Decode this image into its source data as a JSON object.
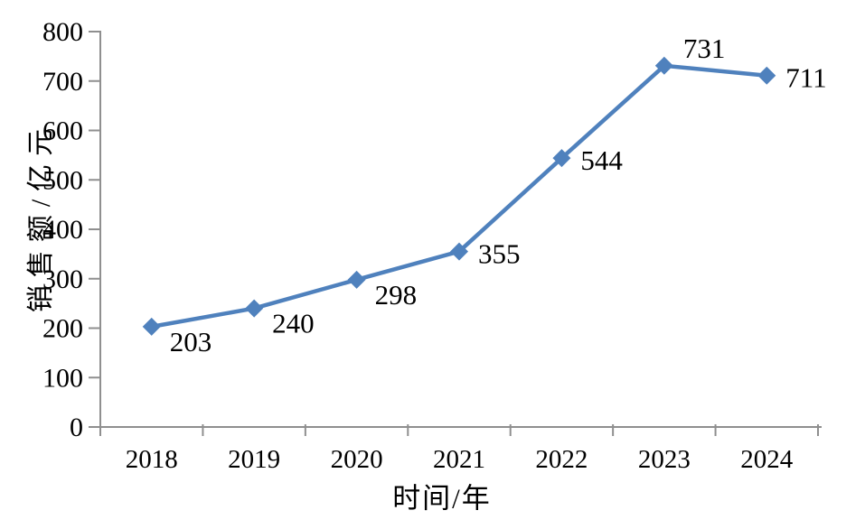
{
  "chart_data": {
    "type": "line",
    "title": "",
    "xlabel": "时间/年",
    "ylabel": "销售额/亿元",
    "categories": [
      "2018",
      "2019",
      "2020",
      "2021",
      "2022",
      "2023",
      "2024"
    ],
    "series": [
      {
        "name": "销售额",
        "values": [
          203,
          240,
          298,
          355,
          544,
          731,
          711
        ]
      }
    ],
    "ylim": [
      0,
      800
    ],
    "ytick_step": 100,
    "yticks": [
      "0",
      "100",
      "200",
      "300",
      "400",
      "500",
      "600",
      "700",
      "800"
    ],
    "grid": "off",
    "legend": "none",
    "marker": "diamond",
    "label_positions": [
      "below-right",
      "below-right",
      "below-right",
      "right",
      "right",
      "above-right",
      "right"
    ],
    "colors": {
      "line": "#4f81bd",
      "marker": "#4f81bd",
      "axis": "#8f8f8f",
      "text": "#000000",
      "background": "#ffffff"
    }
  }
}
